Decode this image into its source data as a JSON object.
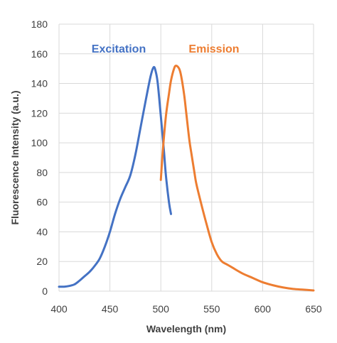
{
  "chart_data": {
    "type": "line",
    "xlabel": "Wavelength (nm)",
    "ylabel": "Fluorescence Intensity (a.u.)",
    "xlim": [
      400,
      650
    ],
    "ylim": [
      0,
      180
    ],
    "xticks": [
      400,
      450,
      500,
      550,
      600,
      650
    ],
    "yticks": [
      0,
      20,
      40,
      60,
      80,
      100,
      120,
      140,
      160,
      180
    ],
    "grid": true,
    "series": [
      {
        "name": "Excitation",
        "color": "#4472C4",
        "x": [
          400,
          405,
          410,
          415,
          420,
          425,
          430,
          435,
          440,
          445,
          450,
          455,
          460,
          465,
          470,
          475,
          480,
          485,
          490,
          493,
          495,
          497,
          500,
          503,
          505,
          508,
          510
        ],
        "y": [
          3,
          3,
          3.5,
          4.5,
          7,
          10,
          13,
          17,
          22,
          30,
          40,
          52,
          62,
          70,
          78,
          92,
          110,
          128,
          145,
          151,
          148,
          140,
          118,
          95,
          78,
          60,
          52
        ]
      },
      {
        "name": "Emission",
        "color": "#ED7D31",
        "x": [
          500,
          502,
          505,
          508,
          510,
          513,
          515,
          518,
          520,
          523,
          525,
          528,
          530,
          533,
          535,
          540,
          545,
          550,
          555,
          560,
          565,
          570,
          580,
          590,
          600,
          610,
          620,
          630,
          640,
          650
        ],
        "y": [
          75,
          95,
          118,
          133,
          142,
          150,
          152,
          150,
          145,
          132,
          120,
          102,
          93,
          80,
          72,
          58,
          45,
          33,
          25,
          20,
          18,
          16,
          12,
          9,
          6,
          4,
          2.5,
          1.5,
          1,
          0.5
        ]
      }
    ]
  }
}
